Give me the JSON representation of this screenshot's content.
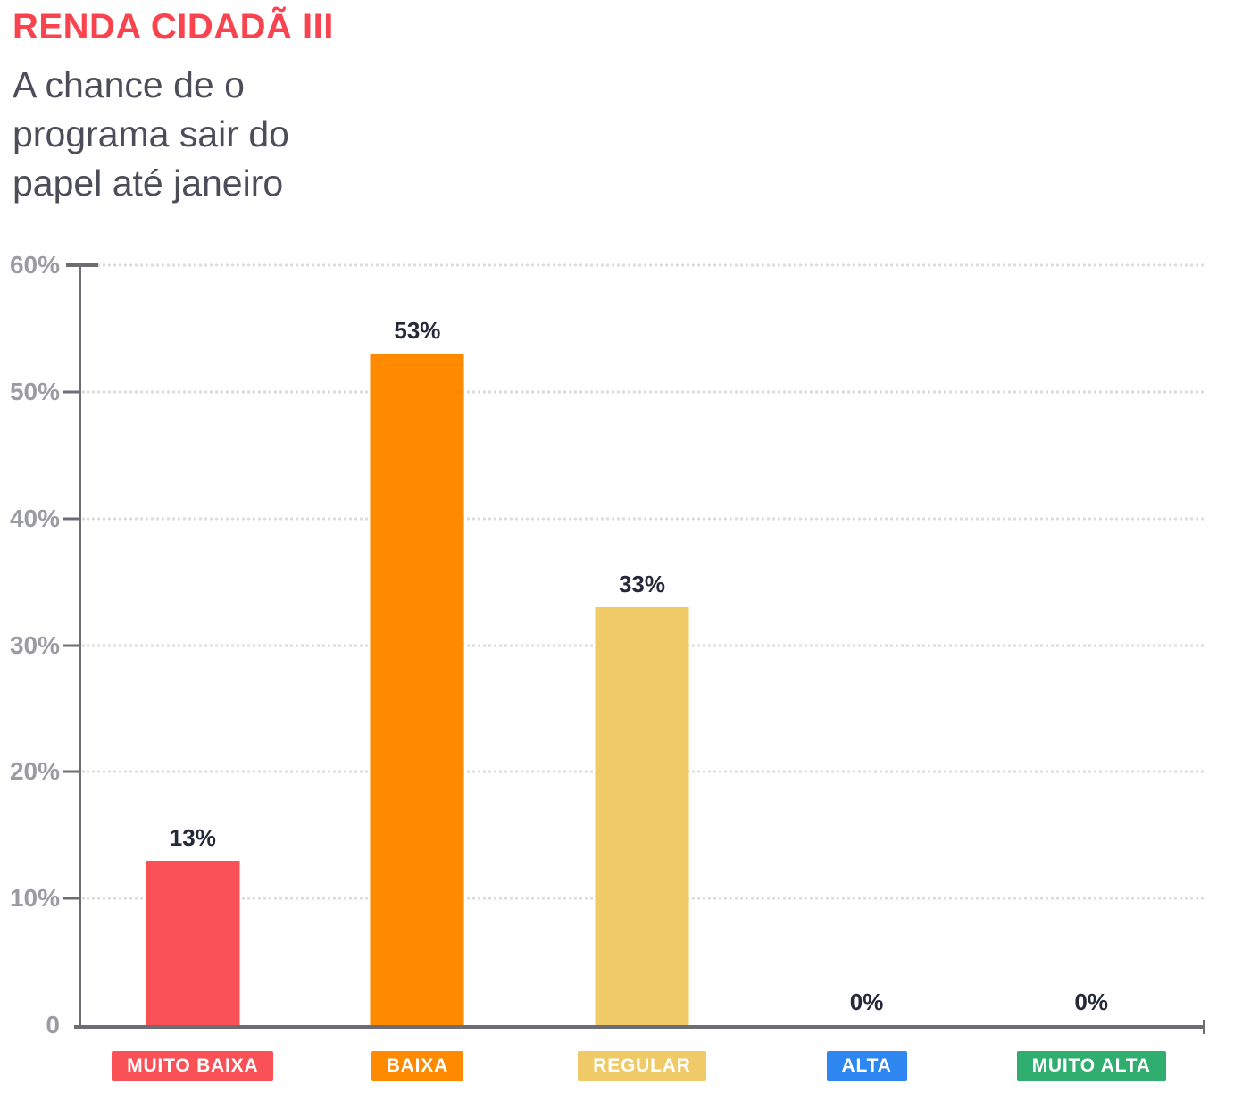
{
  "page": {
    "background": "#ffffff"
  },
  "header": {
    "title": "RENDA CIDADÃ III",
    "title_color": "#f9434e",
    "subtitle_lines": [
      "A chance de o",
      "programa sair do",
      "papel até janeiro"
    ],
    "subtitle_color": "#4c4d59"
  },
  "chart_data": {
    "type": "bar",
    "title": "RENDA CIDADÃ III",
    "subtitle": "A chance de o programa sair do papel até janeiro",
    "categories": [
      "MUITO BAIXA",
      "BAIXA",
      "REGULAR",
      "ALTA",
      "MUITO ALTA"
    ],
    "values": [
      13,
      53,
      33,
      0,
      0
    ],
    "value_labels": [
      "13%",
      "53%",
      "33%",
      "0%",
      "0%"
    ],
    "bar_colors": [
      "#fa5157",
      "#ff8a00",
      "#efca67",
      "#2e86f0",
      "#2fae70"
    ],
    "xlabel": "",
    "ylabel": "",
    "ylim": [
      0,
      60
    ],
    "yticks": [
      {
        "label": "60%",
        "value": 60
      },
      {
        "label": "50%",
        "value": 50
      },
      {
        "label": "40%",
        "value": 40
      },
      {
        "label": "30%",
        "value": 30
      },
      {
        "label": "20%",
        "value": 20
      },
      {
        "label": "10%",
        "value": 10
      },
      {
        "label": "0",
        "value": 0
      }
    ],
    "grid": "horizontal-dotted",
    "legend": "none",
    "axis_color": "#6d6d73",
    "grid_color": "#dcdcdc",
    "tick_label_color": "#9b9ba3",
    "value_label_color": "#232939"
  }
}
